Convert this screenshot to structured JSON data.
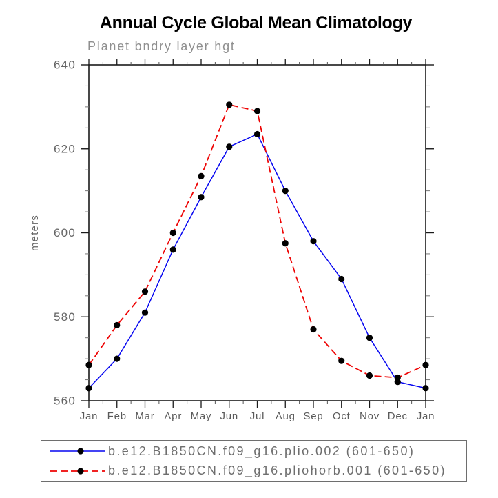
{
  "chart_data": {
    "type": "line",
    "title": "Annual Cycle Global Mean Climatology",
    "subtitle": "Planet bndry layer hgt",
    "ylabel": "meters",
    "xlabel": "",
    "categories": [
      "Jan",
      "Feb",
      "Mar",
      "Apr",
      "May",
      "Jun",
      "Jul",
      "Aug",
      "Sep",
      "Oct",
      "Nov",
      "Dec",
      "Jan"
    ],
    "ylim": [
      560,
      640
    ],
    "yticks": [
      560,
      580,
      600,
      620,
      640
    ],
    "minor_ytick_step": 5,
    "grid": false,
    "legend_position": "bottom",
    "frame_color": "#1a1a1a",
    "axis_text_color": "#666666",
    "marker": {
      "shape": "circle",
      "color": "#000000"
    },
    "series": [
      {
        "name": "b.e12.B1850CN.f09_g16.plio.002 (601-650)",
        "color": "#0606f0",
        "line_style": "solid",
        "values": [
          563,
          570,
          581,
          596,
          608.5,
          620.5,
          623.5,
          610,
          598,
          589,
          575,
          564.5,
          563
        ]
      },
      {
        "name": "b.e12.B1850CN.f09_g16.pliohorb.001 (601-650)",
        "color": "#ee0404",
        "line_style": "dashed",
        "values": [
          568.5,
          578,
          586,
          600,
          613.5,
          630.5,
          629,
          597.5,
          577,
          569.5,
          566,
          565.5,
          568.5
        ]
      }
    ]
  }
}
